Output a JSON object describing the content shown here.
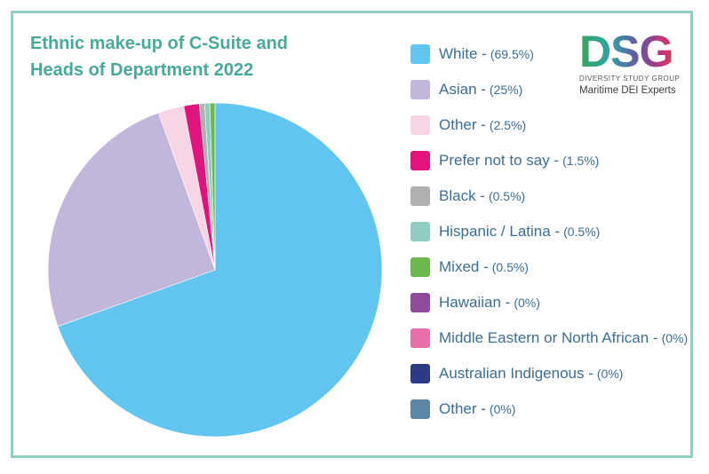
{
  "chart_data": {
    "type": "pie",
    "title_line1": "Ethnic make-up of C-Suite and",
    "title_line2": "Heads of Department 2022",
    "slices": [
      {
        "label": "White",
        "pct_text": "(69.5%)",
        "value": 69.5,
        "color": "#62c5ef"
      },
      {
        "label": "Asian",
        "pct_text": "(25%)",
        "value": 25,
        "color": "#c2b6da"
      },
      {
        "label": "Other",
        "pct_text": "(2.5%)",
        "value": 2.5,
        "color": "#f6d5e6"
      },
      {
        "label": "Prefer not to say",
        "pct_text": "(1.5%)",
        "value": 1.5,
        "color": "#e3137e"
      },
      {
        "label": "Black",
        "pct_text": "(0.5%)",
        "value": 0.5,
        "color": "#b0afb1"
      },
      {
        "label": "Hispanic / Latina",
        "pct_text": "(0.5%)",
        "value": 0.5,
        "color": "#8fcdc3"
      },
      {
        "label": "Mixed",
        "pct_text": "(0.5%)",
        "value": 0.5,
        "color": "#6aba4e"
      },
      {
        "label": "Hawaiian",
        "pct_text": "(0%)",
        "value": 0,
        "color": "#8e4a9c"
      },
      {
        "label": "Middle Eastern or North African",
        "pct_text": "(0%)",
        "value": 0,
        "color": "#ea6fa9"
      },
      {
        "label": "Australian Indigenous ",
        "pct_text": "(0%)",
        "value": 0,
        "color": "#2d3a86"
      },
      {
        "label": "Other",
        "pct_text": "(0%)",
        "value": 0,
        "color": "#5d88a5"
      }
    ],
    "legend_position": "right"
  },
  "logo": {
    "letters": "DSG",
    "subtitle": "DIVERSITY STUDY GROUP",
    "tagline": "Maritime DEI Experts"
  }
}
